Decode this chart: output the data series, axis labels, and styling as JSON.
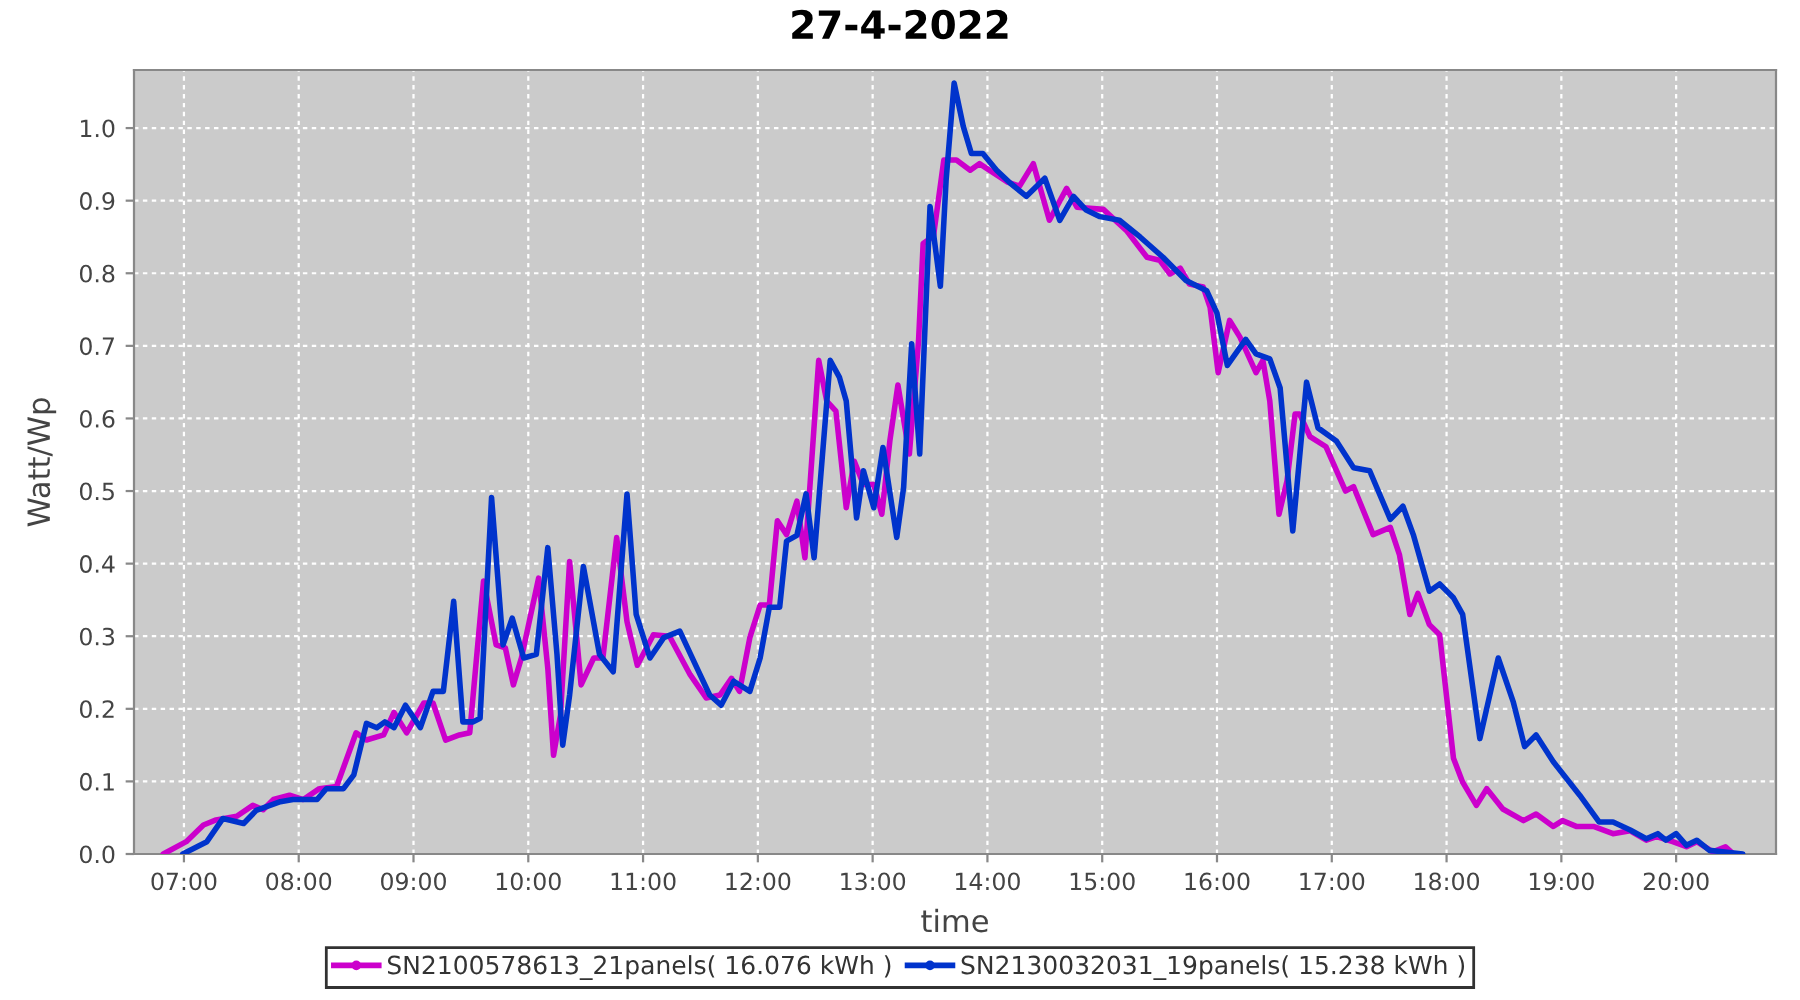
{
  "chart_data": {
    "type": "line",
    "title": "27-4-2022",
    "xlabel": "time",
    "ylabel": "Watt/Wp",
    "xlim": [
      6.565,
      20.87
    ],
    "xticks": [
      {
        "value": 7,
        "label": "07:00"
      },
      {
        "value": 8,
        "label": "08:00"
      },
      {
        "value": 9,
        "label": "09:00"
      },
      {
        "value": 10,
        "label": "10:00"
      },
      {
        "value": 11,
        "label": "11:00"
      },
      {
        "value": 12,
        "label": "12:00"
      },
      {
        "value": 13,
        "label": "13:00"
      },
      {
        "value": 14,
        "label": "14:00"
      },
      {
        "value": 15,
        "label": "15:00"
      },
      {
        "value": 16,
        "label": "16:00"
      },
      {
        "value": 17,
        "label": "17:00"
      },
      {
        "value": 18,
        "label": "18:00"
      },
      {
        "value": 19,
        "label": "19:00"
      },
      {
        "value": 20,
        "label": "20:00"
      }
    ],
    "ylim": [
      0,
      1.08
    ],
    "yticks": [
      {
        "value": 0,
        "label": "0.0"
      },
      0.1,
      0.2,
      0.3,
      0.4,
      0.5,
      0.6,
      0.7,
      0.8,
      0.9,
      {
        "value": 1,
        "label": "1.0"
      }
    ],
    "grid": true,
    "legend": "bottom",
    "line_style": "solid",
    "series": [
      {
        "name": "SN2100578613_21panels( 16.076 kWh )",
        "color": "#cc00cc",
        "x": [
          6.82,
          7.02,
          7.17,
          7.28,
          7.46,
          7.6,
          7.69,
          7.78,
          7.92,
          8.04,
          8.18,
          8.33,
          8.5,
          8.59,
          8.74,
          8.83,
          8.94,
          9.09,
          9.17,
          9.28,
          9.4,
          9.49,
          9.61,
          9.72,
          9.8,
          9.87,
          9.94,
          10.09,
          10.17,
          10.22,
          10.28,
          10.36,
          10.46,
          10.57,
          10.65,
          10.77,
          10.86,
          10.95,
          11.09,
          11.23,
          11.41,
          11.55,
          11.67,
          11.77,
          11.84,
          11.93,
          12.02,
          12.1,
          12.17,
          12.25,
          12.34,
          12.41,
          12.53,
          12.6,
          12.68,
          12.77,
          12.84,
          12.92,
          13.01,
          13.08,
          13.15,
          13.22,
          13.32,
          13.4,
          13.44,
          13.53,
          13.62,
          13.73,
          13.85,
          13.93,
          14.17,
          14.28,
          14.4,
          14.54,
          14.69,
          14.78,
          15.01,
          15.21,
          15.39,
          15.5,
          15.59,
          15.68,
          15.76,
          15.88,
          15.94,
          16.01,
          16.11,
          16.2,
          16.34,
          16.4,
          16.46,
          16.54,
          16.61,
          16.68,
          16.72,
          16.81,
          16.95,
          17.12,
          17.19,
          17.36,
          17.51,
          17.59,
          17.68,
          17.75,
          17.85,
          17.94,
          18.06,
          18.14,
          18.26,
          18.35,
          18.49,
          18.67,
          18.78,
          18.93,
          19.01,
          19.13,
          19.28,
          19.45,
          19.6,
          19.74,
          19.83,
          19.97,
          20.09,
          20.18,
          20.32,
          20.43,
          20.5
        ],
        "values": [
          0,
          0.017,
          0.04,
          0.047,
          0.052,
          0.067,
          0.061,
          0.075,
          0.081,
          0.075,
          0.09,
          0.093,
          0.167,
          0.157,
          0.164,
          0.195,
          0.167,
          0.208,
          0.208,
          0.157,
          0.164,
          0.167,
          0.376,
          0.288,
          0.284,
          0.233,
          0.27,
          0.38,
          0.256,
          0.136,
          0.191,
          0.403,
          0.233,
          0.27,
          0.27,
          0.436,
          0.32,
          0.26,
          0.302,
          0.3,
          0.247,
          0.215,
          0.219,
          0.242,
          0.224,
          0.298,
          0.343,
          0.343,
          0.459,
          0.44,
          0.486,
          0.408,
          0.68,
          0.624,
          0.61,
          0.477,
          0.541,
          0.509,
          0.509,
          0.468,
          0.569,
          0.646,
          0.551,
          0.707,
          0.841,
          0.851,
          0.956,
          0.956,
          0.942,
          0.951,
          0.926,
          0.92,
          0.951,
          0.873,
          0.917,
          0.891,
          0.888,
          0.859,
          0.822,
          0.818,
          0.799,
          0.807,
          0.785,
          0.781,
          0.753,
          0.663,
          0.735,
          0.712,
          0.663,
          0.68,
          0.624,
          0.468,
          0.514,
          0.606,
          0.606,
          0.575,
          0.561,
          0.5,
          0.506,
          0.44,
          0.45,
          0.412,
          0.33,
          0.359,
          0.316,
          0.302,
          0.132,
          0.099,
          0.067,
          0.09,
          0.062,
          0.046,
          0.055,
          0.038,
          0.046,
          0.038,
          0.038,
          0.028,
          0.032,
          0.019,
          0.024,
          0.017,
          0.01,
          0.017,
          0.003,
          0.01,
          0
        ]
      },
      {
        "name": "SN2130032031_19panels( 15.238 kWh )",
        "color": "#0033cc",
        "x": [
          6.99,
          7.2,
          7.34,
          7.52,
          7.63,
          7.84,
          7.95,
          8.16,
          8.24,
          8.39,
          8.48,
          8.59,
          8.68,
          8.75,
          8.83,
          8.93,
          9.06,
          9.17,
          9.26,
          9.35,
          9.43,
          9.52,
          9.58,
          9.68,
          9.78,
          9.86,
          9.96,
          10.07,
          10.17,
          10.25,
          10.3,
          10.36,
          10.48,
          10.62,
          10.74,
          10.86,
          10.94,
          11.06,
          11.18,
          11.32,
          11.47,
          11.58,
          11.68,
          11.79,
          11.93,
          12.02,
          12.1,
          12.19,
          12.25,
          12.34,
          12.42,
          12.49,
          12.63,
          12.71,
          12.77,
          12.86,
          12.92,
          13.01,
          13.09,
          13.21,
          13.27,
          13.34,
          13.41,
          13.5,
          13.59,
          13.64,
          13.71,
          13.79,
          13.86,
          13.96,
          14.08,
          14.2,
          14.34,
          14.5,
          14.63,
          14.75,
          14.86,
          14.98,
          15.15,
          15.33,
          15.53,
          15.73,
          15.91,
          16.0,
          16.09,
          16.25,
          16.34,
          16.46,
          16.55,
          16.66,
          16.78,
          16.88,
          17.04,
          17.19,
          17.33,
          17.51,
          17.62,
          17.71,
          17.85,
          17.94,
          18.06,
          18.14,
          18.29,
          18.45,
          18.58,
          18.68,
          18.78,
          18.93,
          19.16,
          19.33,
          19.45,
          19.6,
          19.74,
          19.84,
          19.91,
          20.0,
          20.09,
          20.18,
          20.29,
          20.58
        ],
        "values": [
          0,
          0.017,
          0.049,
          0.042,
          0.06,
          0.072,
          0.075,
          0.075,
          0.09,
          0.09,
          0.109,
          0.18,
          0.174,
          0.182,
          0.174,
          0.205,
          0.174,
          0.224,
          0.224,
          0.348,
          0.182,
          0.182,
          0.187,
          0.491,
          0.288,
          0.325,
          0.27,
          0.275,
          0.422,
          0.275,
          0.15,
          0.219,
          0.396,
          0.275,
          0.251,
          0.496,
          0.33,
          0.27,
          0.298,
          0.307,
          0.256,
          0.219,
          0.205,
          0.238,
          0.224,
          0.27,
          0.34,
          0.34,
          0.431,
          0.439,
          0.496,
          0.408,
          0.68,
          0.657,
          0.624,
          0.463,
          0.528,
          0.477,
          0.56,
          0.436,
          0.505,
          0.703,
          0.551,
          0.892,
          0.782,
          0.928,
          1.062,
          1.002,
          0.965,
          0.965,
          0.942,
          0.924,
          0.906,
          0.931,
          0.873,
          0.906,
          0.887,
          0.878,
          0.873,
          0.85,
          0.822,
          0.79,
          0.776,
          0.745,
          0.673,
          0.709,
          0.689,
          0.682,
          0.642,
          0.445,
          0.65,
          0.587,
          0.569,
          0.532,
          0.528,
          0.461,
          0.479,
          0.44,
          0.362,
          0.372,
          0.353,
          0.33,
          0.159,
          0.27,
          0.21,
          0.148,
          0.164,
          0.127,
          0.081,
          0.044,
          0.044,
          0.033,
          0.021,
          0.028,
          0.019,
          0.028,
          0.012,
          0.019,
          0.005,
          0
        ]
      }
    ]
  }
}
